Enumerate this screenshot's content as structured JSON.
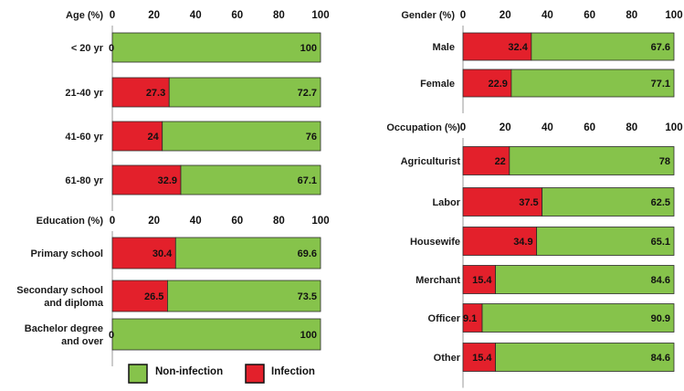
{
  "colors": {
    "infection": "#e3202b",
    "non_infection": "#86c34b",
    "border": "#2b2b2b"
  },
  "legend": {
    "non_infection": "Non-infection",
    "infection": "Infection"
  },
  "chart_data": [
    {
      "type": "bar",
      "orientation": "horizontal",
      "stacked": true,
      "title": "Age (%)",
      "xlim": [
        0,
        100
      ],
      "ticks": [
        "0",
        "20",
        "40",
        "60",
        "80",
        "100"
      ],
      "categories": [
        "< 20 yr",
        "21-40 yr",
        "41-60 yr",
        "61-80 yr"
      ],
      "series": [
        {
          "name": "Infection",
          "values": [
            0,
            27.3,
            24,
            32.9
          ],
          "labels": [
            "0",
            "27.3",
            "24",
            "32.9"
          ]
        },
        {
          "name": "Non-infection",
          "values": [
            100,
            72.7,
            76,
            67.1
          ],
          "labels": [
            "100",
            "72.7",
            "76",
            "67.1"
          ]
        }
      ]
    },
    {
      "type": "bar",
      "orientation": "horizontal",
      "stacked": true,
      "title": "Education (%)",
      "xlim": [
        0,
        100
      ],
      "ticks": [
        "0",
        "20",
        "40",
        "60",
        "80",
        "100"
      ],
      "categories": [
        "Primary school",
        "Secondary school\nand diploma",
        "Bachelor degree\nand over"
      ],
      "series": [
        {
          "name": "Infection",
          "values": [
            30.4,
            26.5,
            0
          ],
          "labels": [
            "30.4",
            "26.5",
            "0"
          ]
        },
        {
          "name": "Non-infection",
          "values": [
            69.6,
            73.5,
            100
          ],
          "labels": [
            "69.6",
            "73.5",
            "100"
          ]
        }
      ]
    },
    {
      "type": "bar",
      "orientation": "horizontal",
      "stacked": true,
      "title": "Gender (%)",
      "xlim": [
        0,
        100
      ],
      "ticks": [
        "0",
        "20",
        "40",
        "60",
        "80",
        "100"
      ],
      "categories": [
        "Male",
        "Female"
      ],
      "series": [
        {
          "name": "Infection",
          "values": [
            32.4,
            22.9
          ],
          "labels": [
            "32.4",
            "22.9"
          ]
        },
        {
          "name": "Non-infection",
          "values": [
            67.6,
            77.1
          ],
          "labels": [
            "67.6",
            "77.1"
          ]
        }
      ]
    },
    {
      "type": "bar",
      "orientation": "horizontal",
      "stacked": true,
      "title": "Occupation (%)",
      "xlim": [
        0,
        100
      ],
      "ticks": [
        "0",
        "20",
        "40",
        "60",
        "80",
        "100"
      ],
      "categories": [
        "Agriculturist",
        "Labor",
        "Housewife",
        "Merchant",
        "Officer",
        "Other"
      ],
      "series": [
        {
          "name": "Infection",
          "values": [
            22,
            37.5,
            34.9,
            15.4,
            9.1,
            15.4
          ],
          "labels": [
            "22",
            "37.5",
            "34.9",
            "15.4",
            "9.1",
            "15.4"
          ]
        },
        {
          "name": "Non-infection",
          "values": [
            78,
            62.5,
            65.1,
            84.6,
            90.9,
            84.6
          ],
          "labels": [
            "78",
            "62.5",
            "65.1",
            "84.6",
            "90.9",
            "84.6"
          ]
        }
      ]
    }
  ]
}
